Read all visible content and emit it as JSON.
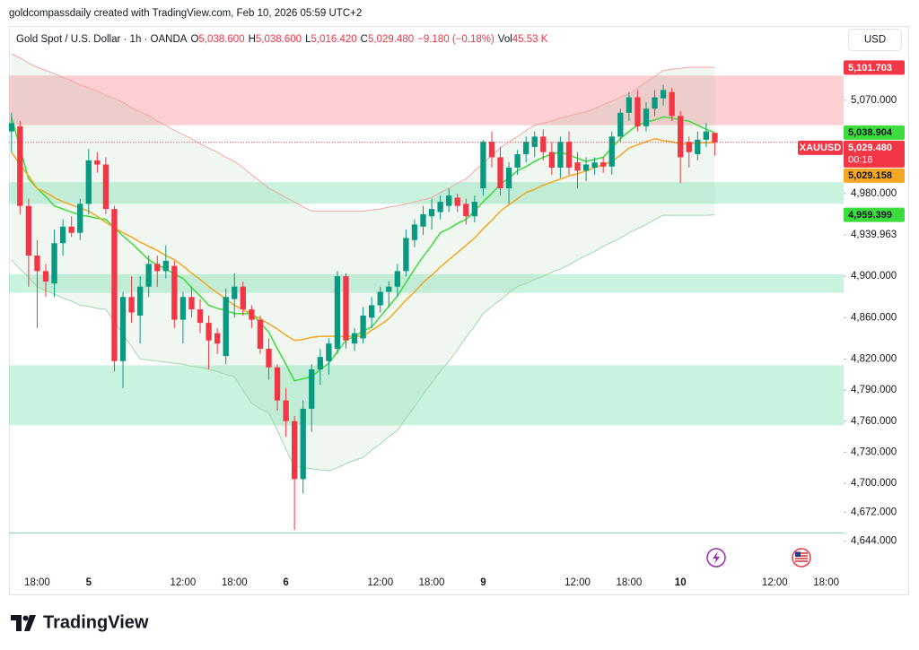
{
  "header": {
    "attribution": "goldcompassdaily created with TradingView.com, Feb 10, 2026 05:59 UTC+2"
  },
  "legend": {
    "symbol": "Gold Spot / U.S. Dollar · 1h · OANDA",
    "fields": [
      {
        "key": "O",
        "value": "5,038.600"
      },
      {
        "key": "H",
        "value": "5,038.600"
      },
      {
        "key": "L",
        "value": "5,016.420"
      },
      {
        "key": "C",
        "value": "5,029.480"
      }
    ],
    "change": "−9.180 (−0.18%)",
    "volume": {
      "key": "Vol",
      "value": "45.53 K"
    }
  },
  "currency": "USD",
  "footer": {
    "brand": "TradingView"
  },
  "chart_data": {
    "type": "candlestick",
    "categories": [
      null,
      null,
      null,
      "18:00",
      null,
      null,
      null,
      null,
      null,
      "5",
      null,
      null,
      null,
      null,
      null,
      null,
      null,
      null,
      null,
      null,
      "12:00",
      null,
      null,
      null,
      null,
      null,
      "18:00",
      null,
      null,
      null,
      null,
      null,
      "6",
      null,
      null,
      null,
      null,
      null,
      null,
      null,
      null,
      null,
      null,
      "12:00",
      null,
      null,
      null,
      null,
      null,
      "18:00",
      null,
      null,
      null,
      null,
      null,
      "9",
      null,
      null,
      null,
      null,
      null,
      null,
      null,
      null,
      null,
      null,
      "12:00",
      null,
      null,
      null,
      null,
      null,
      "18:00",
      null,
      null,
      null,
      null,
      null,
      "10",
      null,
      null,
      null,
      null,
      null,
      null,
      null,
      null,
      null,
      null,
      "12:00",
      null,
      null,
      null,
      null,
      null,
      "18:00",
      null
    ],
    "open": [
      5040,
      5045,
      4968,
      4920,
      4905,
      4893,
      4932,
      4948,
      4942,
      4970,
      5012,
      5008,
      4965,
      4818,
      4880,
      4862,
      4890,
      4912,
      4905,
      4910,
      4858,
      4880,
      4868,
      4855,
      4845,
      4823,
      4878,
      4890,
      4868,
      4858,
      4830,
      4812,
      4780,
      4760,
      4704,
      4772,
      4810,
      4818,
      4830,
      4900,
      4835,
      4840,
      4860,
      4872,
      4885,
      4890,
      4905,
      4935,
      4948,
      4958,
      4962,
      4968,
      4976,
      4970,
      4958,
      4985,
      5030,
      5015,
      4985,
      5005,
      5018,
      5025,
      5035,
      5020,
      5005,
      5030,
      5010,
      5002,
      5005,
      5010,
      5006,
      5035,
      5058,
      5073,
      5045,
      5062,
      5072,
      5078,
      5055,
      5030,
      5018,
      5032,
      5038.6,
      null,
      null,
      null,
      null,
      null,
      null,
      null,
      null,
      null,
      null,
      null,
      null,
      null,
      null
    ],
    "high": [
      5058,
      5050,
      4975,
      4935,
      4912,
      4945,
      4955,
      4958,
      4975,
      5023,
      5020,
      5015,
      4968,
      4885,
      4900,
      4900,
      4920,
      4920,
      4930,
      4915,
      4885,
      4890,
      4878,
      4862,
      4850,
      4888,
      4903,
      4895,
      4872,
      4862,
      4840,
      4815,
      4792,
      4765,
      4780,
      4815,
      4830,
      4840,
      4905,
      4903,
      4850,
      4870,
      4880,
      4890,
      4895,
      4912,
      4945,
      4955,
      4968,
      4975,
      4978,
      4985,
      4980,
      4975,
      4978,
      5032,
      5040,
      5025,
      5010,
      5022,
      5035,
      5040,
      5042,
      5030,
      5035,
      5040,
      5020,
      5015,
      5015,
      5015,
      5040,
      5062,
      5078,
      5080,
      5068,
      5080,
      5085,
      5082,
      5060,
      5035,
      5040,
      5048,
      5038.6,
      null,
      null,
      null,
      null,
      null,
      null,
      null,
      null,
      null,
      null,
      null,
      null,
      null,
      null
    ],
    "low": [
      5020,
      4960,
      4890,
      4850,
      4880,
      4880,
      4920,
      4938,
      4935,
      4960,
      5000,
      4960,
      4808,
      4792,
      4855,
      4835,
      4880,
      4890,
      4898,
      4850,
      4835,
      4860,
      4845,
      4810,
      4825,
      4815,
      4860,
      4862,
      4850,
      4825,
      4800,
      4770,
      4745,
      4655,
      4690,
      4750,
      4795,
      4805,
      4825,
      4830,
      4828,
      4835,
      4850,
      4865,
      4870,
      4880,
      4900,
      4928,
      4940,
      4945,
      4955,
      4962,
      4962,
      4950,
      4952,
      4978,
      5005,
      4978,
      4970,
      4998,
      5010,
      5015,
      5012,
      4998,
      4995,
      4998,
      4985,
      4992,
      4998,
      5000,
      4998,
      5030,
      5050,
      5040,
      5040,
      5055,
      5065,
      5050,
      4990,
      5005,
      5012,
      5025,
      5016.42,
      null,
      null,
      null,
      null,
      null,
      null,
      null,
      null,
      null,
      null,
      null,
      null,
      null,
      null
    ],
    "close": [
      5048,
      4968,
      4920,
      4905,
      4895,
      4932,
      4948,
      4942,
      4970,
      5012,
      5008,
      4965,
      4818,
      4880,
      4865,
      4890,
      4912,
      4905,
      4915,
      4858,
      4880,
      4868,
      4855,
      4838,
      4835,
      4880,
      4890,
      4868,
      4858,
      4830,
      4812,
      4780,
      4760,
      4704,
      4772,
      4810,
      4822,
      4835,
      4900,
      4838,
      4845,
      4862,
      4872,
      4885,
      4890,
      4905,
      4937,
      4950,
      4960,
      4965,
      4972,
      4978,
      4968,
      4958,
      4972,
      5030,
      5015,
      4985,
      5005,
      5018,
      5030,
      5035,
      5020,
      5005,
      5030,
      5005,
      5002,
      5008,
      5010,
      5006,
      5035,
      5058,
      5073,
      5045,
      5062,
      5073,
      5080,
      5055,
      5015,
      5020,
      5032,
      5040,
      5029.48,
      null,
      null,
      null,
      null,
      null,
      null,
      null,
      null,
      null,
      null,
      null,
      null,
      null,
      null
    ],
    "up_color": "#089981",
    "down_color": "#f23645",
    "moving_averages": [
      {
        "color": "#3ddc3d",
        "values": [
          5054,
          5024,
          4994,
          4985,
          4977,
          4968,
          4965,
          4962,
          4959,
          4958,
          4956,
          4955,
          4947,
          4939,
          4932,
          4924,
          4916,
          4911,
          4907,
          4902,
          4898,
          4889,
          4881,
          4872,
          4869,
          4867,
          4864,
          4864,
          4864,
          4855,
          4846,
          4830,
          4815,
          4799,
          4801,
          4803,
          4810,
          4816,
          4827,
          4838,
          4842,
          4847,
          4851,
          4861,
          4871,
          4881,
          4894,
          4907,
          4919,
          4930,
          4942,
          4946,
          4951,
          4955,
          4963,
          4972,
          4980,
          4989,
          4995,
          5002,
          5006,
          5011,
          5015,
          5018,
          5020,
          5017,
          5014,
          5011,
          5013,
          5015,
          5024,
          5033,
          5040,
          5046,
          5049,
          5051,
          5054,
          5053,
          5051,
          5050,
          5046,
          5042,
          5038.904,
          null,
          null,
          null,
          null,
          null,
          null,
          null,
          null,
          null,
          null,
          null,
          null,
          null,
          null
        ]
      },
      {
        "color": "#f5a623",
        "values": [
          5020,
          5008,
          4997,
          4985,
          4981,
          4976,
          4972,
          4969,
          4966,
          4963,
          4958,
          4952,
          4947,
          4942,
          4938,
          4933,
          4929,
          4925,
          4920,
          4916,
          4910,
          4903,
          4897,
          4890,
          4884,
          4878,
          4872,
          4868,
          4863,
          4859,
          4854,
          4849,
          4843,
          4838,
          4839,
          4841,
          4842,
          4842,
          4842,
          4842,
          4842,
          4842,
          4848,
          4853,
          4859,
          4868,
          4877,
          4885,
          4894,
          4901,
          4909,
          4916,
          4923,
          4930,
          4937,
          4946,
          4954,
          4963,
          4969,
          4975,
          4981,
          4984,
          4988,
          4991,
          4994,
          4997,
          4999,
          5002,
          5005,
          5008,
          5011,
          5017,
          5024,
          5027,
          5030,
          5033,
          5031,
          5030,
          5028,
          5028,
          5029,
          5029,
          5029.158,
          null,
          null,
          null,
          null,
          null,
          null,
          null,
          null,
          null,
          null,
          null,
          null,
          null,
          null
        ]
      }
    ],
    "bollinger": {
      "fill": "rgba(140,190,150,0.13)",
      "upper": {
        "color": "#f4a7a7",
        "values": [
          5115,
          5111,
          5106,
          5102,
          5099,
          5096,
          5092,
          5089,
          5085,
          5082,
          5079,
          5075,
          5072,
          5068,
          5063,
          5059,
          5055,
          5050,
          5046,
          5041,
          5037,
          5033,
          5028,
          5024,
          5020,
          5015,
          5011,
          5005,
          4998,
          4992,
          4985,
          4981,
          4976,
          4972,
          4967,
          4963,
          4963,
          4963,
          4963,
          4963,
          4963,
          4963,
          4964,
          4965,
          4967,
          4968,
          4970,
          4972,
          4974,
          4976,
          4981,
          4985,
          4990,
          4994,
          5002,
          5009,
          5017,
          5024,
          5030,
          5035,
          5041,
          5046,
          5048,
          5050,
          5053,
          5055,
          5057,
          5059,
          5062,
          5066,
          5069,
          5073,
          5076,
          5082,
          5088,
          5093,
          5099,
          5100,
          5101,
          5102,
          5102,
          5102,
          5101.703,
          null,
          null,
          null,
          null,
          null,
          null,
          null,
          null,
          null,
          null,
          null,
          null,
          null,
          null
        ]
      },
      "lower": {
        "color": "#9fd8ab",
        "values": [
          4916,
          4907,
          4899,
          4890,
          4886,
          4883,
          4879,
          4876,
          4872,
          4871,
          4869,
          4868,
          4856,
          4844,
          4832,
          4820,
          4819,
          4818,
          4817,
          4816,
          4815,
          4813,
          4812,
          4810,
          4808,
          4805,
          4803,
          4790,
          4777,
          4772,
          4768,
          4751,
          4733,
          4716,
          4715,
          4714,
          4713,
          4712,
          4715,
          4719,
          4722,
          4725,
          4732,
          4738,
          4745,
          4751,
          4763,
          4774,
          4786,
          4797,
          4808,
          4818,
          4829,
          4841,
          4852,
          4864,
          4871,
          4877,
          4884,
          4890,
          4893,
          4897,
          4900,
          4904,
          4907,
          4911,
          4916,
          4920,
          4924,
          4929,
          4933,
          4937,
          4942,
          4946,
          4950,
          4955,
          4959,
          4959,
          4959,
          4959,
          4959,
          4959,
          4959.399,
          null,
          null,
          null,
          null,
          null,
          null,
          null,
          null,
          null,
          null,
          null,
          null,
          null,
          null
        ]
      }
    },
    "zones": [
      {
        "low": 5046,
        "high": 5094,
        "color": "rgba(242,54,69,0.24)"
      },
      {
        "low": 4970,
        "high": 4991,
        "color": "rgba(8,200,110,0.22)"
      },
      {
        "low": 4884,
        "high": 4902,
        "color": "rgba(8,200,110,0.22)"
      },
      {
        "low": 4756,
        "high": 4814,
        "color": "rgba(8,200,110,0.22)"
      }
    ],
    "levels": [
      {
        "value": 4652,
        "color": "#81d4a6"
      }
    ],
    "price_tags": [
      {
        "value": 5101.703,
        "label": "5,101.703",
        "background": "#f23645",
        "text_color": "#ffffff"
      },
      {
        "value": 5038.904,
        "label": "5,038.904",
        "background": "#3ddc3d",
        "text_color": "#131722"
      },
      {
        "value": 5029.48,
        "label": "5,029.480",
        "symbol": "XAUUSD",
        "countdown": "00:16",
        "background": "#f23645",
        "text_color": "#ffffff"
      },
      {
        "value": 5029.158,
        "label": "5,029.158",
        "background": "#f5a623",
        "text_color": "#131722"
      },
      {
        "value": 4959.399,
        "label": "4,959.399",
        "background": "#3ddc3d",
        "text_color": "#131722"
      }
    ],
    "ylim": [
      4612.5,
      5141
    ],
    "yticks": [
      {
        "value": 5070,
        "label": "5,070.000"
      },
      {
        "value": 4980,
        "label": "4,980.000"
      },
      {
        "value": 4939.963,
        "label": "4,939.963"
      },
      {
        "value": 4900,
        "label": "4,900.000"
      },
      {
        "value": 4860,
        "label": "4,860.000"
      },
      {
        "value": 4820,
        "label": "4,820.000"
      },
      {
        "value": 4790,
        "label": "4,790.000"
      },
      {
        "value": 4760,
        "label": "4,760.000"
      },
      {
        "value": 4730,
        "label": "4,730.000"
      },
      {
        "value": 4700,
        "label": "4,700.000"
      },
      {
        "value": 4672,
        "label": "4,672.000"
      },
      {
        "value": 4644,
        "label": "4,644.000"
      }
    ],
    "grid": false
  }
}
